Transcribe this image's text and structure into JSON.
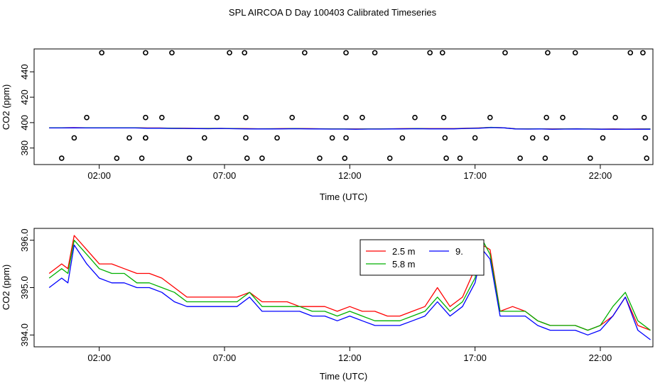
{
  "title": "SPL AIRCOA D  Day 100403  Calibrated Timeseries",
  "chart_data": [
    {
      "type": "scatter",
      "xlabel": "Time (UTC)",
      "ylabel": "CO2 (ppm)",
      "xlim": [
        -0.6,
        24.1
      ],
      "ylim": [
        367,
        458
      ],
      "x_ticks": [
        2,
        7,
        12,
        17,
        22
      ],
      "x_tick_labels": [
        "02:00",
        "07:00",
        "12:00",
        "17:00",
        "22:00"
      ],
      "y_ticks": [
        380,
        400,
        420,
        440
      ],
      "y_tick_labels": [
        "380",
        "400",
        "420",
        "440"
      ],
      "grid": false,
      "points": {
        "x": [
          0.5,
          1.0,
          1.5,
          2.1,
          2.7,
          3.2,
          3.7,
          3.85,
          3.85,
          3.85,
          3.85,
          4.5,
          4.9,
          5.6,
          6.2,
          6.7,
          7.2,
          7.8,
          7.85,
          7.85,
          7.9,
          8.5,
          9.1,
          9.7,
          10.2,
          10.8,
          11.3,
          11.8,
          11.85,
          11.85,
          11.85,
          12.5,
          13.0,
          13.6,
          14.1,
          14.6,
          15.2,
          15.7,
          15.75,
          15.8,
          15.85,
          16.4,
          17.0,
          17.6,
          18.2,
          18.8,
          19.3,
          19.8,
          19.85,
          19.85,
          19.9,
          20.5,
          21.0,
          21.6,
          22.1,
          22.6,
          23.2,
          23.7,
          23.75,
          23.8,
          23.85
        ],
        "y": [
          372,
          388,
          404,
          455,
          372,
          388,
          372,
          388,
          404,
          455,
          388,
          404,
          455,
          372,
          388,
          404,
          455,
          455,
          404,
          388,
          372,
          372,
          388,
          404,
          455,
          372,
          388,
          372,
          388,
          404,
          455,
          404,
          455,
          372,
          388,
          404,
          455,
          455,
          404,
          388,
          372,
          372,
          388,
          404,
          455,
          372,
          388,
          372,
          388,
          404,
          455,
          404,
          455,
          372,
          388,
          404,
          455,
          455,
          404,
          388,
          372
        ]
      },
      "series": [
        {
          "name": "2.5 m",
          "color": "#ff0000",
          "values": [
            396.0,
            396.0,
            396.1,
            396.0,
            396.0,
            395.9,
            396.0,
            396.0,
            395.8,
            395.8,
            395.6,
            395.6,
            395.5,
            395.5,
            395.5,
            395.4,
            395.3,
            395.2,
            395.2,
            395.3,
            395.4,
            395.3,
            395.2,
            395.1,
            395.0,
            395.0,
            395.0,
            395.1,
            395.2,
            395.3,
            395.4,
            395.3,
            395.3,
            395.3,
            395.6,
            395.8,
            396.2,
            396.0,
            395.2,
            395.1,
            395.1,
            395.0,
            395.1,
            395.2,
            395.0,
            394.9,
            395.0,
            394.9,
            395.0,
            395.0
          ]
        },
        {
          "name": "5.8 m",
          "color": "#00b000",
          "values": [
            395.9,
            395.9,
            396.0,
            395.9,
            395.9,
            395.9,
            395.9,
            395.9,
            395.7,
            395.7,
            395.6,
            395.5,
            395.4,
            395.4,
            395.5,
            395.3,
            395.2,
            395.1,
            395.2,
            395.2,
            395.3,
            395.2,
            395.1,
            395.0,
            395.0,
            394.9,
            395.0,
            395.0,
            395.1,
            395.2,
            395.3,
            395.2,
            395.2,
            395.2,
            395.5,
            395.7,
            396.3,
            396.0,
            395.1,
            395.0,
            395.1,
            394.9,
            395.0,
            395.1,
            395.0,
            394.9,
            394.9,
            394.9,
            394.9,
            395.0
          ]
        },
        {
          "name": "9.",
          "color": "#0000ff",
          "values": [
            395.8,
            395.8,
            395.9,
            395.8,
            395.8,
            395.8,
            395.8,
            395.8,
            395.6,
            395.6,
            395.4,
            395.4,
            395.3,
            395.2,
            395.4,
            395.2,
            395.1,
            395.0,
            395.0,
            395.1,
            395.2,
            395.1,
            395.0,
            394.9,
            394.9,
            394.8,
            394.9,
            394.9,
            395.0,
            395.1,
            395.2,
            395.1,
            395.1,
            395.1,
            395.4,
            395.6,
            396.1,
            395.9,
            395.0,
            394.9,
            395.0,
            394.8,
            394.9,
            395.0,
            394.9,
            394.8,
            394.8,
            394.8,
            394.8,
            394.8
          ]
        }
      ]
    },
    {
      "type": "line",
      "xlabel": "Time (UTC)",
      "ylabel": "CO2 (ppm)",
      "xlim": [
        -0.6,
        24.1
      ],
      "ylim": [
        393.75,
        396.25
      ],
      "x_ticks": [
        2,
        7,
        12,
        17,
        22
      ],
      "x_tick_labels": [
        "02:00",
        "07:00",
        "12:00",
        "17:00",
        "22:00"
      ],
      "y_ticks": [
        394.0,
        395.0,
        396.0
      ],
      "y_tick_labels": [
        "394.0",
        "395.0",
        "396.0"
      ],
      "grid": false,
      "legend": {
        "position": "top-center",
        "entries": [
          "2.5 m",
          "5.8 m",
          "9."
        ]
      },
      "x": [
        0.0,
        0.5,
        0.75,
        1.0,
        1.5,
        2.0,
        2.5,
        3.0,
        3.5,
        4.0,
        4.5,
        5.0,
        5.5,
        6.0,
        6.5,
        7.0,
        7.5,
        8.0,
        8.5,
        9.0,
        9.5,
        10.0,
        10.5,
        11.0,
        11.5,
        12.0,
        12.5,
        13.0,
        13.5,
        14.0,
        14.5,
        15.0,
        15.5,
        16.0,
        16.5,
        17.0,
        17.3,
        17.6,
        18.0,
        18.5,
        19.0,
        19.5,
        20.0,
        20.5,
        21.0,
        21.5,
        22.0,
        22.5,
        23.0,
        23.5,
        24.0
      ],
      "series": [
        {
          "name": "2.5 m",
          "color": "#ff0000",
          "values": [
            395.3,
            395.5,
            395.4,
            396.1,
            395.8,
            395.5,
            395.5,
            395.4,
            395.3,
            395.3,
            395.2,
            395.0,
            394.8,
            394.8,
            394.8,
            394.8,
            394.8,
            394.9,
            394.7,
            394.7,
            394.7,
            394.6,
            394.6,
            394.6,
            394.5,
            394.6,
            394.5,
            394.5,
            394.4,
            394.4,
            394.5,
            394.6,
            395.0,
            394.6,
            394.8,
            395.4,
            395.9,
            395.8,
            394.5,
            394.6,
            394.5,
            394.3,
            394.2,
            394.2,
            394.2,
            394.1,
            394.2,
            394.4,
            394.8,
            394.2,
            394.1
          ]
        },
        {
          "name": "5.8 m",
          "color": "#00b000",
          "values": [
            395.2,
            395.4,
            395.3,
            396.0,
            395.7,
            395.4,
            395.3,
            395.3,
            395.1,
            395.1,
            395.0,
            394.9,
            394.7,
            394.7,
            394.7,
            394.7,
            394.7,
            394.9,
            394.6,
            394.6,
            394.6,
            394.6,
            394.5,
            394.5,
            394.4,
            394.5,
            394.4,
            394.3,
            394.3,
            394.3,
            394.4,
            394.5,
            394.8,
            394.5,
            394.7,
            395.2,
            396.0,
            395.7,
            394.5,
            394.5,
            394.5,
            394.3,
            394.2,
            394.2,
            394.2,
            394.1,
            394.2,
            394.6,
            394.9,
            394.3,
            394.1
          ]
        },
        {
          "name": "9.",
          "color": "#0000ff",
          "values": [
            395.0,
            395.2,
            395.1,
            395.9,
            395.5,
            395.2,
            395.1,
            395.1,
            395.0,
            395.0,
            394.9,
            394.7,
            394.6,
            394.6,
            394.6,
            394.6,
            394.6,
            394.8,
            394.5,
            394.5,
            394.5,
            394.5,
            394.4,
            394.4,
            394.3,
            394.4,
            394.3,
            394.2,
            394.2,
            394.2,
            394.3,
            394.4,
            394.7,
            394.4,
            394.6,
            395.1,
            395.8,
            395.6,
            394.4,
            394.4,
            394.4,
            394.2,
            394.1,
            394.1,
            394.1,
            394.0,
            394.1,
            394.4,
            394.8,
            394.1,
            393.9
          ]
        }
      ]
    }
  ]
}
